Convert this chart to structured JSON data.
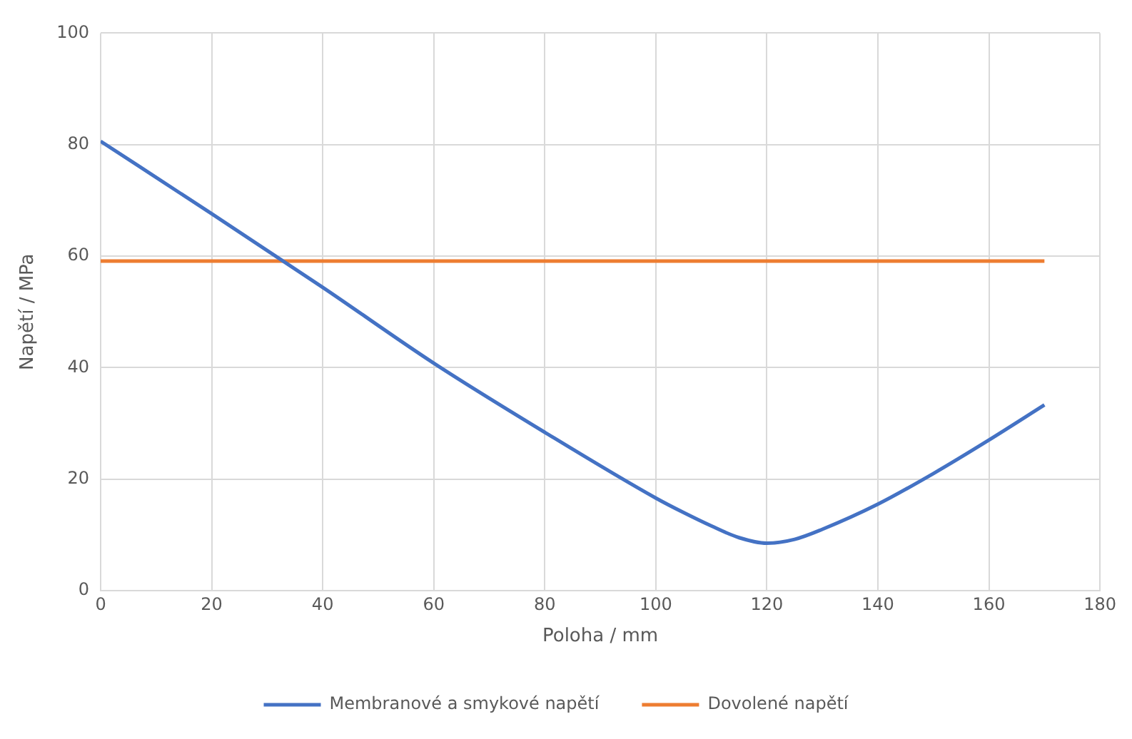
{
  "chart_data": {
    "type": "line",
    "xlabel": "Poloha / mm",
    "ylabel": "Napětí / MPa",
    "xlim": [
      0,
      180
    ],
    "xticks": [
      0,
      20,
      40,
      60,
      80,
      100,
      120,
      140,
      160,
      180
    ],
    "ylim": [
      0,
      100
    ],
    "yticks": [
      0,
      20,
      40,
      60,
      80,
      100
    ],
    "grid": true,
    "legend": "bottom",
    "marker": "none",
    "line_style": "solid",
    "series": [
      {
        "name": "Membranové a smykové napětí",
        "color": "#4472c4",
        "x": [
          0,
          20,
          40,
          60,
          80,
          100,
          105,
          110,
          115,
          120,
          125,
          130,
          140,
          150,
          160,
          170
        ],
        "values": [
          80.6,
          67.6,
          54.4,
          40.8,
          28.4,
          16.6,
          14,
          11.6,
          9.5,
          8.5,
          9.2,
          11,
          15.5,
          21,
          27,
          33.3
        ]
      },
      {
        "name": "Dovolené napětí",
        "color": "#ed7d31",
        "x": [
          0,
          170
        ],
        "values": [
          59.1,
          59.1
        ]
      }
    ]
  }
}
